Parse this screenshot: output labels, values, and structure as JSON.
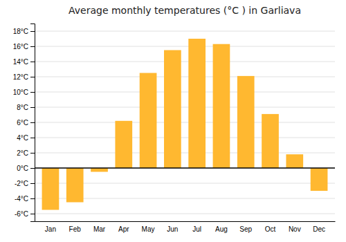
{
  "chart_data": {
    "type": "bar",
    "title": "Average monthly temperatures (°C ) in Garliava",
    "categories": [
      "Jan",
      "Feb",
      "Mar",
      "Apr",
      "May",
      "Jun",
      "Jul",
      "Aug",
      "Sep",
      "Oct",
      "Nov",
      "Dec"
    ],
    "values": [
      -5.5,
      -4.5,
      -0.5,
      6.2,
      12.5,
      15.5,
      17.0,
      16.3,
      12.1,
      7.1,
      1.8,
      -3.0
    ],
    "color": "#FFB830",
    "ylim": [
      -7,
      19
    ],
    "yticks": [
      {
        "value": -6,
        "label": "-6°C"
      },
      {
        "value": -4,
        "label": "-4°C"
      },
      {
        "value": -2,
        "label": "-2°C"
      },
      {
        "value": 0,
        "label": "0°C"
      },
      {
        "value": 2,
        "label": "2°C"
      },
      {
        "value": 4,
        "label": "4°C"
      },
      {
        "value": 6,
        "label": "6°C"
      },
      {
        "value": 8,
        "label": "8°C"
      },
      {
        "value": 10,
        "label": "10°C"
      },
      {
        "value": 12,
        "label": "12°C"
      },
      {
        "value": 14,
        "label": "14°C"
      },
      {
        "value": 16,
        "label": "16°C"
      },
      {
        "value": 18,
        "label": "18°C"
      }
    ],
    "grid": true
  }
}
